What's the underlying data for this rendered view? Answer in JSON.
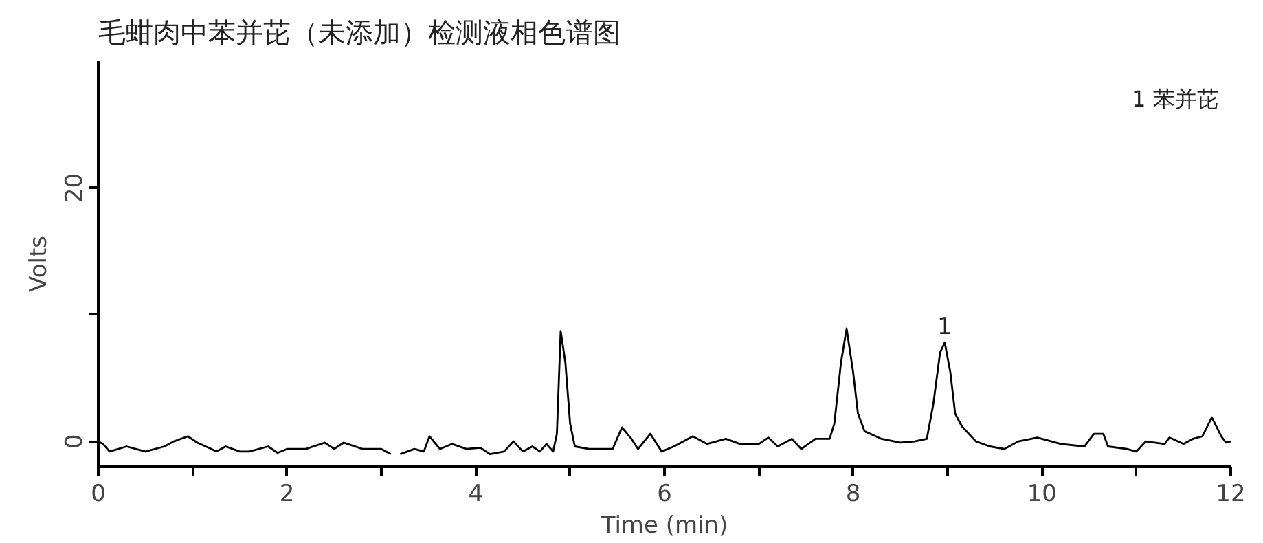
{
  "chart_data": {
    "type": "line",
    "title": "毛蚶肉中苯并芘（未添加）检测液相色谱图",
    "xlabel": "Time (min)",
    "ylabel": "Volts",
    "xlim": [
      0,
      12
    ],
    "ylim": [
      -2,
      30
    ],
    "xticks": [
      0,
      {
        "value": 1,
        "label": null
      },
      2,
      {
        "value": 3,
        "label": null
      },
      4,
      {
        "value": 5,
        "label": null
      },
      6,
      {
        "value": 7,
        "label": null
      },
      8,
      {
        "value": 9,
        "label": null
      },
      10,
      {
        "value": 11,
        "label": null
      },
      12
    ],
    "yticks": [
      0,
      {
        "value": 10,
        "label": null
      },
      20
    ],
    "grid": false,
    "marker": "none",
    "line_style": "solid",
    "annotations": [
      {
        "text": "1",
        "x": 8.97,
        "y": 7.8
      },
      "1  苯并芘"
    ],
    "series": [
      {
        "color": "#000000",
        "x": [
          0,
          0.05,
          0.12,
          0.3,
          0.5,
          0.7,
          0.8,
          0.95,
          1.05,
          1.2,
          1.25,
          1.35,
          1.5,
          1.6,
          1.8,
          1.9,
          2.0,
          2.2,
          2.4,
          2.5,
          2.6,
          2.8,
          3.0,
          3.1,
          3.15,
          3.2,
          3.35,
          3.45,
          3.51,
          3.62,
          3.75,
          3.9,
          4.05,
          4.15,
          4.3,
          4.4,
          4.5,
          4.6,
          4.68,
          4.75,
          4.82,
          4.86,
          4.9,
          4.95,
          5.0,
          5.05,
          5.2,
          5.45,
          5.55,
          5.65,
          5.72,
          5.85,
          5.97,
          6.1,
          6.3,
          6.45,
          6.65,
          6.8,
          7.0,
          7.1,
          7.2,
          7.35,
          7.45,
          7.6,
          7.75,
          7.8,
          7.87,
          7.93,
          8.0,
          8.05,
          8.12,
          8.3,
          8.5,
          8.65,
          8.78,
          8.85,
          8.92,
          8.97,
          9.03,
          9.08,
          9.15,
          9.3,
          9.45,
          9.6,
          9.75,
          9.95,
          10.2,
          10.45,
          10.55,
          10.65,
          10.7,
          10.9,
          11.0,
          11.1,
          11.3,
          11.35,
          11.5,
          11.6,
          11.7,
          11.8,
          11.9,
          11.95,
          12.0
        ],
        "values": [
          0.0,
          -0.2,
          -0.8,
          -0.4,
          -0.8,
          -0.4,
          0.0,
          0.4,
          -0.1,
          -0.6,
          -0.8,
          -0.4,
          -0.8,
          -0.8,
          -0.4,
          -0.9,
          -0.6,
          -0.6,
          -0.1,
          -0.6,
          -0.1,
          -0.6,
          -0.6,
          -1.0,
          null,
          -1.0,
          -0.6,
          -0.8,
          0.4,
          -0.6,
          -0.2,
          -0.6,
          -0.5,
          -1.0,
          -0.8,
          0.0,
          -0.8,
          -0.4,
          -0.8,
          -0.2,
          -0.8,
          0.6,
          8.7,
          6.2,
          1.4,
          -0.4,
          -0.6,
          -0.6,
          1.1,
          0.2,
          -0.6,
          0.6,
          -0.8,
          -0.4,
          0.4,
          -0.2,
          0.2,
          -0.2,
          -0.2,
          0.3,
          -0.4,
          0.2,
          -0.6,
          0.2,
          0.2,
          1.4,
          6.2,
          8.9,
          5.4,
          2.2,
          0.8,
          0.2,
          -0.1,
          0.0,
          0.2,
          3.0,
          7.0,
          7.8,
          5.4,
          2.2,
          1.2,
          0.0,
          -0.4,
          -0.6,
          0.0,
          0.3,
          -0.2,
          -0.4,
          0.6,
          0.6,
          -0.4,
          -0.6,
          -0.8,
          0.0,
          -0.2,
          0.3,
          -0.2,
          0.2,
          0.4,
          1.9,
          0.4,
          -0.1,
          0.0
        ]
      }
    ]
  }
}
